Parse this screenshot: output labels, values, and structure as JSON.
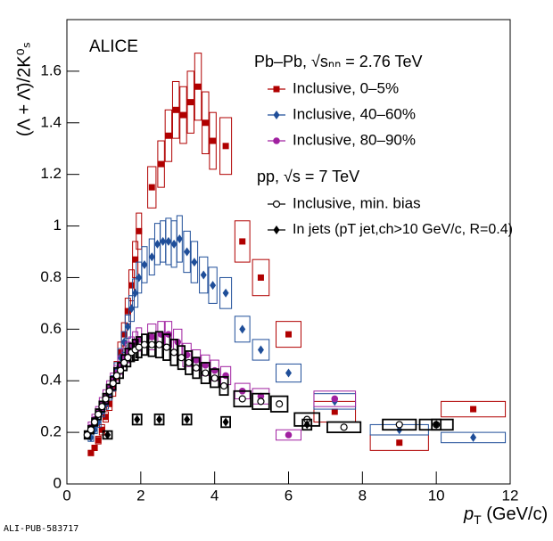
{
  "chart_data": {
    "type": "scatter",
    "experiment": "ALICE",
    "y_label": "(Λ + Λ̄)/2K⁰ₛ",
    "x_label": {
      "main": "p",
      "sub": "T",
      "unit": " (GeV/c)"
    },
    "footer": "ALI-PUB-583717",
    "legend_headers": [
      "Pb–Pb, √sₙₙ = 2.76 TeV",
      "pp, √s = 7 TeV"
    ],
    "xlim": [
      0,
      12
    ],
    "ylim": [
      0,
      1.8
    ],
    "xticks": [
      0,
      2,
      4,
      6,
      8,
      10,
      12
    ],
    "yticks": [
      0,
      0.2,
      0.4,
      0.6,
      0.8,
      1,
      1.2,
      1.4,
      1.6
    ],
    "series": [
      {
        "name": "Inclusive, 0–5%",
        "color": "#b00000",
        "marker": "square",
        "group": 0,
        "x": [
          0.65,
          0.75,
          0.85,
          0.95,
          1.05,
          1.15,
          1.25,
          1.35,
          1.45,
          1.55,
          1.65,
          1.75,
          1.85,
          1.95,
          2.3,
          2.55,
          2.75,
          2.95,
          3.15,
          3.35,
          3.55,
          3.75,
          3.95,
          4.3,
          4.75,
          5.25,
          6.0,
          7.25,
          9.0,
          11.0
        ],
        "values": [
          0.12,
          0.14,
          0.17,
          0.21,
          0.26,
          0.31,
          0.37,
          0.44,
          0.51,
          0.58,
          0.67,
          0.77,
          0.87,
          0.98,
          1.15,
          1.24,
          1.35,
          1.45,
          1.43,
          1.48,
          1.54,
          1.4,
          1.33,
          1.31,
          0.94,
          0.8,
          0.58,
          0.28,
          0.16,
          0.29
        ],
        "sys": [
          0.01,
          0.01,
          0.015,
          0.02,
          0.02,
          0.025,
          0.03,
          0.035,
          0.04,
          0.045,
          0.05,
          0.06,
          0.07,
          0.07,
          0.08,
          0.09,
          0.1,
          0.11,
          0.11,
          0.12,
          0.13,
          0.12,
          0.11,
          0.11,
          0.08,
          0.07,
          0.05,
          0.04,
          0.03,
          0.03
        ]
      },
      {
        "name": "Inclusive, 40–60%",
        "color": "#1f4e99",
        "marker": "diamond",
        "group": 0,
        "x": [
          0.65,
          0.75,
          0.85,
          0.95,
          1.05,
          1.15,
          1.25,
          1.35,
          1.45,
          1.55,
          1.65,
          1.75,
          1.85,
          1.95,
          2.1,
          2.3,
          2.45,
          2.6,
          2.75,
          2.9,
          3.05,
          3.25,
          3.45,
          3.7,
          3.95,
          4.3,
          4.75,
          5.25,
          6.0,
          7.25,
          9.0,
          11.0
        ],
        "values": [
          0.18,
          0.21,
          0.24,
          0.28,
          0.31,
          0.35,
          0.39,
          0.44,
          0.49,
          0.55,
          0.61,
          0.68,
          0.74,
          0.8,
          0.85,
          0.88,
          0.93,
          0.94,
          0.94,
          0.93,
          0.95,
          0.9,
          0.86,
          0.81,
          0.77,
          0.74,
          0.6,
          0.52,
          0.43,
          0.32,
          0.21,
          0.18
        ],
        "sys": [
          0.015,
          0.015,
          0.02,
          0.02,
          0.02,
          0.025,
          0.03,
          0.03,
          0.035,
          0.04,
          0.045,
          0.05,
          0.055,
          0.06,
          0.07,
          0.07,
          0.08,
          0.08,
          0.09,
          0.09,
          0.09,
          0.08,
          0.08,
          0.07,
          0.07,
          0.06,
          0.05,
          0.04,
          0.035,
          0.03,
          0.02,
          0.02
        ]
      },
      {
        "name": "Inclusive, 80–90%",
        "color": "#a020a0",
        "marker": "circle",
        "group": 0,
        "x": [
          0.65,
          0.75,
          0.85,
          0.95,
          1.05,
          1.15,
          1.25,
          1.35,
          1.45,
          1.55,
          1.65,
          1.75,
          1.85,
          1.95,
          2.3,
          2.55,
          2.75,
          3.0,
          3.25,
          3.5,
          3.75,
          4.0,
          4.3,
          4.75,
          5.25,
          6.0,
          7.25
        ],
        "values": [
          0.22,
          0.25,
          0.28,
          0.31,
          0.34,
          0.37,
          0.4,
          0.43,
          0.46,
          0.49,
          0.51,
          0.53,
          0.55,
          0.56,
          0.57,
          0.58,
          0.58,
          0.55,
          0.5,
          0.48,
          0.46,
          0.44,
          0.42,
          0.36,
          0.34,
          0.19,
          0.33
        ],
        "sys": [
          0.02,
          0.02,
          0.02,
          0.025,
          0.025,
          0.03,
          0.03,
          0.03,
          0.035,
          0.035,
          0.04,
          0.04,
          0.04,
          0.045,
          0.05,
          0.05,
          0.05,
          0.05,
          0.045,
          0.04,
          0.04,
          0.04,
          0.035,
          0.03,
          0.03,
          0.02,
          0.03
        ]
      },
      {
        "name": "Inclusive, min. bias",
        "color": "#000000",
        "marker": "open-circle",
        "group": 1,
        "x": [
          0.55,
          0.65,
          0.75,
          0.85,
          0.95,
          1.05,
          1.15,
          1.25,
          1.35,
          1.45,
          1.55,
          1.65,
          1.75,
          1.85,
          1.95,
          2.1,
          2.3,
          2.5,
          2.7,
          2.9,
          3.1,
          3.3,
          3.5,
          3.75,
          4.0,
          4.25,
          4.75,
          5.25,
          5.75,
          6.5,
          7.5,
          9.0,
          10.0
        ],
        "values": [
          0.19,
          0.21,
          0.24,
          0.27,
          0.3,
          0.33,
          0.36,
          0.39,
          0.42,
          0.44,
          0.47,
          0.49,
          0.51,
          0.52,
          0.53,
          0.54,
          0.54,
          0.54,
          0.53,
          0.51,
          0.49,
          0.47,
          0.45,
          0.43,
          0.41,
          0.38,
          0.33,
          0.32,
          0.31,
          0.25,
          0.22,
          0.23,
          0.23
        ],
        "sys": [
          0.015,
          0.015,
          0.015,
          0.02,
          0.02,
          0.02,
          0.025,
          0.025,
          0.03,
          0.03,
          0.03,
          0.035,
          0.035,
          0.04,
          0.04,
          0.04,
          0.045,
          0.05,
          0.05,
          0.05,
          0.045,
          0.045,
          0.04,
          0.04,
          0.035,
          0.035,
          0.03,
          0.03,
          0.03,
          0.025,
          0.02,
          0.02,
          0.02
        ]
      },
      {
        "name": "In jets (pT jet,ch>10 GeV/c, R=0.4)",
        "color": "#000000",
        "marker": "diamond",
        "group": 1,
        "x": [
          1.1,
          1.9,
          2.5,
          3.25,
          4.3,
          6.5,
          10.0
        ],
        "values": [
          0.19,
          0.25,
          0.25,
          0.25,
          0.24,
          0.23,
          0.23
        ],
        "sys": [
          0.015,
          0.02,
          0.02,
          0.02,
          0.02,
          0.02,
          0.02
        ]
      }
    ]
  }
}
